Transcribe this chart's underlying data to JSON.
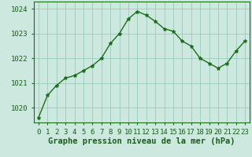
{
  "x": [
    0,
    1,
    2,
    3,
    4,
    5,
    6,
    7,
    8,
    9,
    10,
    11,
    12,
    13,
    14,
    15,
    16,
    17,
    18,
    19,
    20,
    21,
    22,
    23
  ],
  "y": [
    1019.6,
    1020.5,
    1020.9,
    1021.2,
    1021.3,
    1021.5,
    1021.7,
    1022.0,
    1022.6,
    1023.0,
    1023.6,
    1023.9,
    1023.75,
    1023.5,
    1023.2,
    1023.1,
    1022.7,
    1022.5,
    1022.0,
    1021.8,
    1021.6,
    1021.8,
    1022.3,
    1022.7
  ],
  "line_color": "#1a6e1a",
  "marker": "*",
  "plot_bg_color": "#cce8df",
  "fig_bg_color": "#cce8df",
  "grid_color": "#99ccbb",
  "xlabel": "Graphe pression niveau de la mer (hPa)",
  "ylim": [
    1019.4,
    1024.3
  ],
  "yticks": [
    1020,
    1021,
    1022,
    1023,
    1024
  ],
  "xticks": [
    0,
    1,
    2,
    3,
    4,
    5,
    6,
    7,
    8,
    9,
    10,
    11,
    12,
    13,
    14,
    15,
    16,
    17,
    18,
    19,
    20,
    21,
    22,
    23
  ],
  "tick_label_color": "#1a5e1a",
  "xlabel_color": "#1a5e1a",
  "xlabel_fontsize": 7.5,
  "tick_fontsize": 6.5,
  "border_color": "#1a6e1a",
  "bottom_band_color": "#1a6e1a",
  "bottom_band_text_color": "#ccffcc"
}
